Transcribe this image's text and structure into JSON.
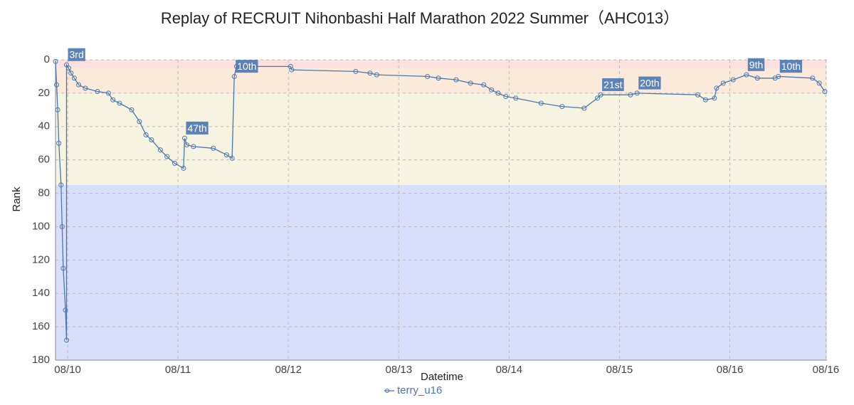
{
  "chart_data": {
    "type": "line",
    "title": "Replay of RECRUIT Nihonbashi Half Marathon 2022 Summer（AHC013）",
    "xlabel": "Datetime",
    "ylabel": "Rank",
    "x": [
      9.89,
      9.9,
      9.91,
      9.92,
      9.94,
      9.95,
      9.96,
      9.98,
      9.99,
      9.99,
      10.01,
      10.03,
      10.06,
      10.1,
      10.16,
      10.27,
      10.37,
      10.41,
      10.47,
      10.58,
      10.65,
      10.71,
      10.76,
      10.84,
      10.9,
      10.97,
      11.05,
      11.06,
      11.08,
      11.14,
      11.32,
      11.44,
      11.49,
      11.51,
      11.53,
      12.02,
      12.03,
      12.61,
      12.74,
      12.8,
      13.26,
      13.36,
      13.52,
      13.65,
      13.77,
      13.84,
      13.9,
      13.97,
      14.06,
      14.29,
      14.48,
      14.68,
      14.8,
      14.83,
      15.1,
      15.16,
      15.71,
      15.78,
      15.86,
      15.88,
      15.94,
      16.03,
      16.15,
      16.25,
      16.41,
      16.44,
      16.75,
      16.81,
      16.86
    ],
    "series": [
      {
        "name": "terry_u16",
        "color": "#4a77b4",
        "values": [
          1,
          15,
          30,
          50,
          75,
          100,
          125,
          150,
          168,
          3,
          5,
          8,
          11,
          15,
          17,
          19,
          20,
          24,
          26,
          30,
          37,
          45,
          48,
          54,
          58,
          62,
          65,
          47,
          51,
          52,
          53,
          57,
          59,
          10,
          4,
          4,
          6,
          7,
          8,
          9,
          10,
          11,
          12,
          14,
          15,
          18,
          20,
          22,
          23,
          26,
          28,
          29,
          23,
          21,
          21,
          20,
          21,
          24,
          23,
          17,
          14,
          12,
          9,
          11,
          11,
          10,
          11,
          14,
          19
        ],
        "value_labels": [
          null,
          null,
          null,
          null,
          null,
          null,
          null,
          null,
          null,
          "3rd",
          null,
          null,
          null,
          null,
          null,
          null,
          null,
          null,
          null,
          null,
          null,
          null,
          null,
          null,
          null,
          null,
          null,
          "47th",
          null,
          null,
          null,
          null,
          null,
          "10th",
          null,
          null,
          null,
          null,
          null,
          null,
          null,
          null,
          null,
          null,
          null,
          null,
          null,
          null,
          null,
          null,
          null,
          null,
          null,
          "21st",
          null,
          "20th",
          null,
          null,
          null,
          null,
          null,
          null,
          "9th",
          null,
          null,
          "10th",
          null,
          null,
          null
        ]
      }
    ],
    "xlim": [
      9.89,
      16.88
    ],
    "xticks": [
      {
        "value": 10,
        "label": "08/10"
      },
      {
        "value": 11,
        "label": "08/11"
      },
      {
        "value": 12,
        "label": "08/12"
      },
      {
        "value": 13,
        "label": "08/13"
      },
      {
        "value": 14,
        "label": "08/14"
      },
      {
        "value": 15,
        "label": "08/15"
      },
      {
        "value": 16,
        "label": "08/16"
      },
      {
        "value": 16.87,
        "label": "08/16"
      }
    ],
    "ylim": [
      0,
      180
    ],
    "yticks": [
      0,
      20,
      40,
      60,
      80,
      100,
      120,
      140,
      160,
      180
    ],
    "y_inverted": true,
    "grid": true,
    "legend": "bottom",
    "bands": [
      {
        "from": 0,
        "to": 5,
        "color": "#fbe0dd"
      },
      {
        "from": 5,
        "to": 20,
        "color": "#fbe9da"
      },
      {
        "from": 20,
        "to": 75,
        "color": "#f6f3e0"
      },
      {
        "from": 75,
        "to": 180,
        "color": "#d9dffb"
      }
    ]
  }
}
